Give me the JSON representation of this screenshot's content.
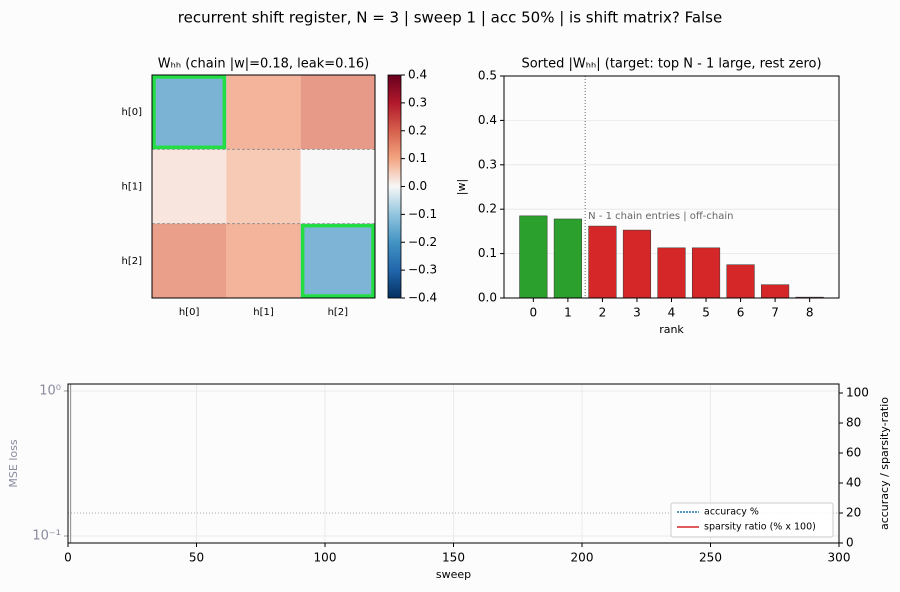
{
  "title": "recurrent shift register, N = 3  |  sweep 1  |  acc 50%  |  is shift matrix? False",
  "chart_data": [
    {
      "type": "heatmap",
      "title": "Wₕₕ  (chain |w|=0.18, leak=0.16)",
      "rows": [
        "h[0]",
        "h[1]",
        "h[2]"
      ],
      "columns": [
        "h[0]",
        "h[1]",
        "h[2]"
      ],
      "values": [
        [
          -0.185,
          0.113,
          0.162
        ],
        [
          0.03,
          0.075,
          -0.002
        ],
        [
          0.153,
          0.113,
          -0.178
        ]
      ],
      "cmap": "RdBu_r",
      "clim": [
        -0.4,
        0.4
      ],
      "cticks": [
        0.4,
        0.3,
        0.2,
        0.1,
        {
          "value": 0,
          "label": "0.0"
        },
        {
          "value": -0.1,
          "label": "−0.1"
        },
        {
          "value": -0.2,
          "label": "−0.2"
        },
        {
          "value": -0.3,
          "label": "−0.3"
        },
        {
          "value": -0.4,
          "label": "−0.4"
        }
      ],
      "highlight": [
        [
          0,
          0
        ],
        [
          2,
          2
        ]
      ],
      "highlight_color": "#22dd44"
    },
    {
      "type": "bar",
      "title": "Sorted |Wₕₕ|  (target: top N - 1 large, rest zero)",
      "categories": [
        "0",
        "1",
        "2",
        "3",
        "4",
        "5",
        "6",
        "7",
        "8"
      ],
      "values": [
        0.185,
        0.178,
        0.162,
        0.153,
        0.113,
        0.113,
        0.075,
        0.03,
        0.002
      ],
      "colors": [
        "#2ca02c",
        "#2ca02c",
        "#d62728",
        "#d62728",
        "#d62728",
        "#d62728",
        "#d62728",
        "#d62728",
        "#d62728"
      ],
      "xlim": [
        -0.85,
        8.85
      ],
      "ylim": [
        0,
        0.5
      ],
      "yticks": [
        {
          "value": 0,
          "label": "0.0"
        },
        0.1,
        0.2,
        0.3,
        0.4,
        0.5
      ],
      "xlabel": "rank",
      "ylabel": "|w|",
      "annotation": "N - 1 chain entries  |  off-chain",
      "vline": 1.5,
      "grid": true
    },
    {
      "type": "line",
      "xlabel": "sweep",
      "ylabel": "MSE loss",
      "y2label": "accuracy / sparsity-ratio",
      "x": [],
      "xlim": [
        0,
        300
      ],
      "xticks": [
        0,
        50,
        100,
        150,
        200,
        250,
        300
      ],
      "ylim": [
        0.0895,
        1.117
      ],
      "yscale": "log",
      "yticks": [
        {
          "value": 1,
          "label": "10⁰"
        },
        {
          "value": 0.1,
          "label": "10⁻¹"
        }
      ],
      "y2lim": [
        0,
        106
      ],
      "y2ticks": [
        0,
        20,
        40,
        60,
        80,
        100
      ],
      "series": [
        {
          "name": "accuracy %",
          "color": "#1f77b4",
          "axis": "y2",
          "values": []
        },
        {
          "name": "sparsity ratio (% x 100)",
          "color": "#d62728",
          "axis": "y2",
          "values": []
        }
      ],
      "hline": 20,
      "vline": 1,
      "legend": "lower right",
      "grid": true
    }
  ]
}
